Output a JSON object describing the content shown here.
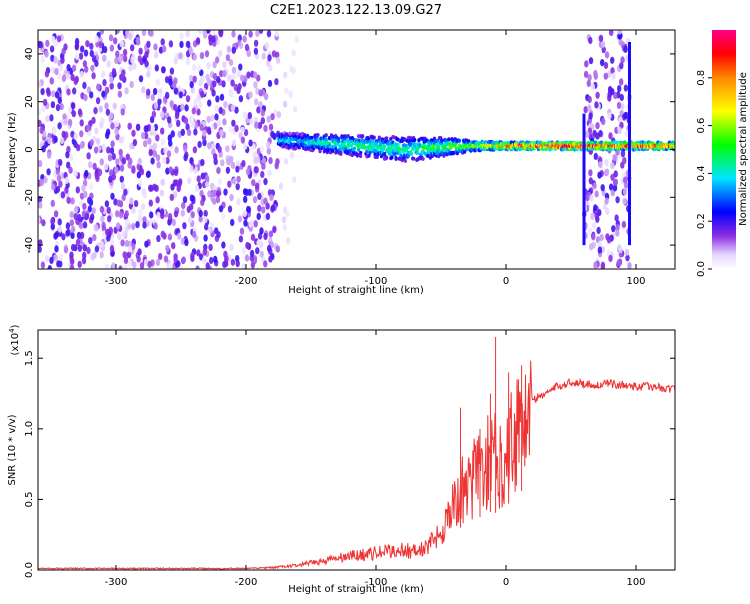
{
  "title": "C2E1.2023.122.13.09.G27",
  "chart_data": [
    {
      "type": "heatmap",
      "title": "C2E1.2023.122.13.09.G27",
      "xlabel": "Height of straight line (km)",
      "ylabel": "Frequency (Hz)",
      "xlim": [
        -360,
        130
      ],
      "ylim": [
        -50,
        50
      ],
      "xticks": [
        -300,
        -200,
        -100,
        0,
        100
      ],
      "yticks": [
        -40,
        -20,
        0,
        20,
        40
      ],
      "xtick_labels": [
        "-300",
        "-200",
        "-100",
        "0",
        "100"
      ],
      "ytick_labels": [
        "-40",
        "-20",
        "0",
        "20",
        "40"
      ],
      "colorbar": {
        "label": "Normalized spectral amplitude",
        "range": [
          0,
          1
        ],
        "ticks": [
          0.0,
          0.2,
          0.4,
          0.6,
          0.8
        ],
        "tick_labels": [
          "0.0",
          "0.2",
          "0.4",
          "0.6",
          "0.8"
        ]
      },
      "regions": [
        {
          "x": [
            -360,
            -175
          ],
          "y": [
            -50,
            50
          ],
          "amplitude": 0.15,
          "kind": "noise"
        },
        {
          "x": [
            -175,
            -150
          ],
          "y": [
            -50,
            50
          ],
          "amplitude": 0.06,
          "kind": "fading noise"
        },
        {
          "x": [
            60,
            95
          ],
          "y": [
            -50,
            50
          ],
          "amplitude": 0.15,
          "kind": "noise"
        }
      ],
      "signal_track": [
        {
          "x": -175,
          "y": 4,
          "width": 6,
          "amplitude": 0.35
        },
        {
          "x": -150,
          "y": 3,
          "width": 7,
          "amplitude": 0.4
        },
        {
          "x": -125,
          "y": 2,
          "width": 8,
          "amplitude": 0.45
        },
        {
          "x": -100,
          "y": 1,
          "width": 9,
          "amplitude": 0.45
        },
        {
          "x": -75,
          "y": 0,
          "width": 10,
          "amplitude": 0.45
        },
        {
          "x": -50,
          "y": 1,
          "width": 8,
          "amplitude": 0.5
        },
        {
          "x": -25,
          "y": 1.5,
          "width": 4,
          "amplitude": 0.6
        },
        {
          "x": 0,
          "y": 1.5,
          "width": 3,
          "amplitude": 0.8
        },
        {
          "x": 25,
          "y": 1.5,
          "width": 3,
          "amplitude": 0.9
        },
        {
          "x": 58,
          "y": 1.5,
          "width": 3,
          "amplitude": 0.95
        },
        {
          "x": 98,
          "y": 1.5,
          "width": 3,
          "amplitude": 0.85
        },
        {
          "x": 130,
          "y": 1.5,
          "width": 3,
          "amplitude": 0.8
        }
      ],
      "edge_lines": [
        {
          "x": 60,
          "ylim": [
            -40,
            15
          ]
        },
        {
          "x": 95,
          "ylim": [
            -40,
            45
          ]
        }
      ]
    },
    {
      "type": "line",
      "xlabel": "Height of straight line (km)",
      "ylabel": "SNR (10 * v/v)",
      "y_multiplier": "(x10",
      "y_multiplier_exp": "4",
      "y_multiplier_close": ")",
      "xlim": [
        -360,
        130
      ],
      "ylim": [
        0,
        1.7
      ],
      "xticks": [
        -300,
        -200,
        -100,
        0,
        100
      ],
      "yticks": [
        0.0,
        0.5,
        1.0,
        1.5
      ],
      "xtick_labels": [
        "-300",
        "-200",
        "-100",
        "0",
        "100"
      ],
      "ytick_labels": [
        "0.0",
        "0.5",
        "1.0",
        "1.5"
      ],
      "color": "#ee3333",
      "series": [
        {
          "x": [
            -360,
            -300,
            -250,
            -200,
            -180,
            -160,
            -140,
            -120,
            -100,
            -90,
            -80,
            -70,
            -60,
            -50,
            -45,
            -40,
            -35,
            -30,
            -25,
            -20,
            -15,
            -10,
            -5,
            0,
            5,
            10,
            15,
            20,
            30,
            40,
            50,
            60,
            70,
            80,
            90,
            100,
            110,
            120,
            130
          ],
          "y": [
            0.01,
            0.01,
            0.01,
            0.01,
            0.015,
            0.03,
            0.06,
            0.09,
            0.11,
            0.12,
            0.13,
            0.12,
            0.15,
            0.25,
            0.35,
            0.45,
            0.6,
            0.55,
            0.7,
            0.75,
            0.78,
            0.85,
            0.75,
            0.9,
            1.0,
            1.1,
            1.15,
            1.2,
            1.25,
            1.3,
            1.33,
            1.32,
            1.31,
            1.32,
            1.31,
            1.3,
            1.3,
            1.29,
            1.28
          ]
        }
      ],
      "spikes": [
        {
          "x": -8,
          "y": 1.65
        },
        {
          "x": -35,
          "y": 1.15
        },
        {
          "x": -20,
          "y": 1.0
        },
        {
          "x": -12,
          "y": 1.25
        },
        {
          "x": 2,
          "y": 1.4
        },
        {
          "x": 12,
          "y": 1.45
        }
      ]
    }
  ]
}
